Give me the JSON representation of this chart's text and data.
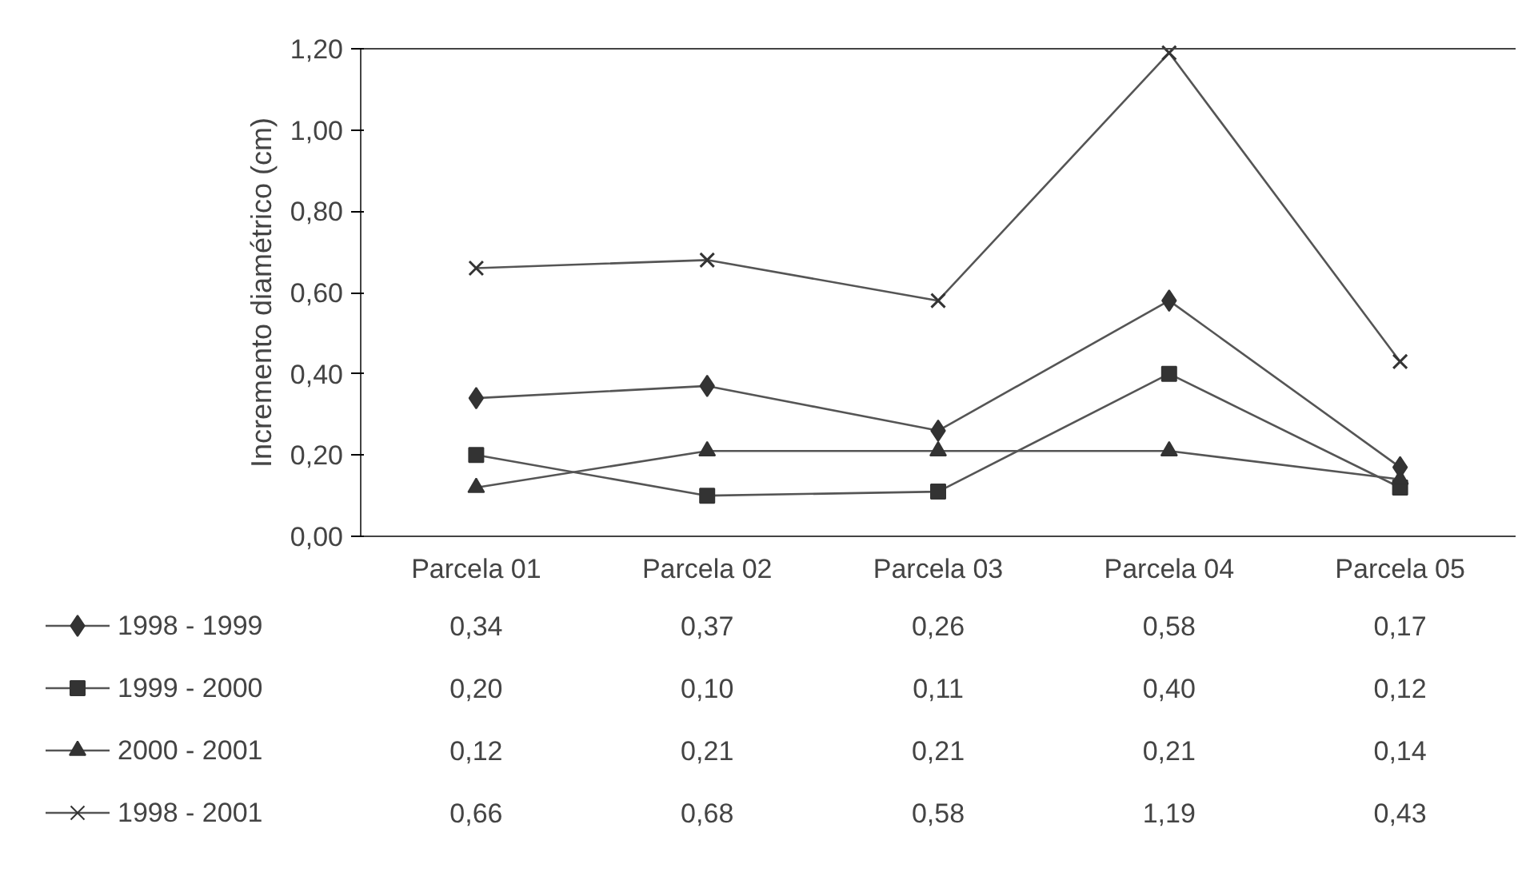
{
  "chart_data": {
    "type": "line",
    "ylabel": "Incremento diamétrico (cm)",
    "categories": [
      "Parcela 01",
      "Parcela 02",
      "Parcela 03",
      "Parcela 04",
      "Parcela 05"
    ],
    "ylim": [
      0,
      1.2
    ],
    "yticks": [
      {
        "value": 0,
        "label": "0,00"
      },
      {
        "value": 0.2,
        "label": "0,20"
      },
      {
        "value": 0.4,
        "label": "0,40"
      },
      {
        "value": 0.6,
        "label": "0,60"
      },
      {
        "value": 0.8,
        "label": "0,80"
      },
      {
        "value": 1.0,
        "label": "1,00"
      },
      {
        "value": 1.2,
        "label": "1,20"
      }
    ],
    "grid": false,
    "legend": "bottom",
    "line_style": "solid",
    "series": [
      {
        "name": "1998 - 1999",
        "color": "#555555",
        "marker": "diamond",
        "values": [
          0.34,
          0.37,
          0.26,
          0.58,
          0.17
        ],
        "value_labels": [
          "0,34",
          "0,37",
          "0,26",
          "0,58",
          "0,17"
        ]
      },
      {
        "name": "1999 - 2000",
        "color": "#555555",
        "marker": "square",
        "values": [
          0.2,
          0.1,
          0.11,
          0.4,
          0.12
        ],
        "value_labels": [
          "0,20",
          "0,10",
          "0,11",
          "0,40",
          "0,12"
        ]
      },
      {
        "name": "2000 - 2001",
        "color": "#555555",
        "marker": "triangle",
        "values": [
          0.12,
          0.21,
          0.21,
          0.21,
          0.14
        ],
        "value_labels": [
          "0,12",
          "0,21",
          "0,21",
          "0,21",
          "0,14"
        ]
      },
      {
        "name": "1998 - 2001",
        "color": "#555555",
        "marker": "cross",
        "values": [
          0.66,
          0.68,
          0.58,
          1.19,
          0.43
        ],
        "value_labels": [
          "0,66",
          "0,68",
          "0,58",
          "1,19",
          "0,43"
        ]
      }
    ]
  }
}
